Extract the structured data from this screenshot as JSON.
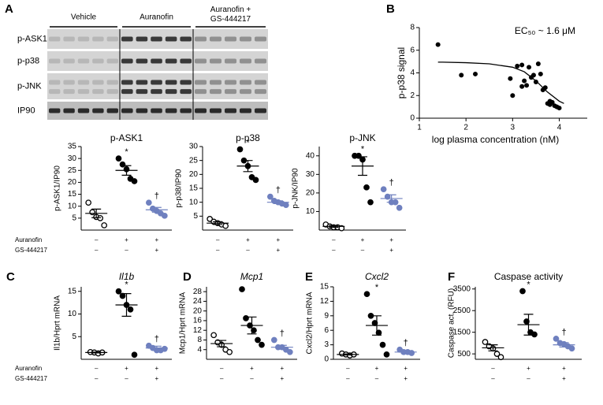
{
  "blot": {
    "panel": "A",
    "groups": [
      "Vehicle",
      "Auranofin",
      "Auranofin + GS-444217"
    ],
    "rows": [
      "p-ASK1",
      "p-p38",
      "p-JNK",
      "IP90"
    ]
  },
  "chart_data": [
    {
      "type": "dot",
      "title": "p-ASK1",
      "ylabel": "p-ASK1/IP90",
      "ylim": [
        0,
        35
      ],
      "yticks": [
        5,
        10,
        15,
        20,
        25,
        30,
        35
      ],
      "groups": [
        {
          "fill": "#ffffff",
          "stroke": "#000000",
          "values": [
            11.5,
            7.5,
            5.5,
            5,
            2
          ],
          "mean": 7,
          "sem": 1.8,
          "mark": null
        },
        {
          "fill": "#000000",
          "stroke": "#000000",
          "values": [
            30,
            27.5,
            25.5,
            21.5,
            20.5
          ],
          "mean": 25,
          "sem": 2,
          "mark": "*"
        },
        {
          "fill": "#6f80bf",
          "stroke": "#6f80bf",
          "values": [
            11.5,
            9,
            8,
            7,
            6
          ],
          "mean": 8.5,
          "sem": 1,
          "mark": "†"
        }
      ],
      "conditions": [
        {
          "name": "Auranofin",
          "signs": [
            "–",
            "+",
            "+"
          ]
        },
        {
          "name": "GS-444217",
          "signs": [
            "–",
            "–",
            "+"
          ]
        }
      ]
    },
    {
      "type": "dot",
      "title": "p-p38",
      "ylabel": "p-p38/IP90",
      "ylim": [
        0,
        30
      ],
      "yticks": [
        5,
        10,
        15,
        20,
        25,
        30
      ],
      "groups": [
        {
          "fill": "#ffffff",
          "stroke": "#000000",
          "values": [
            4,
            3,
            2.5,
            2,
            1.5
          ],
          "mean": 2.5,
          "sem": 0.5,
          "mark": null
        },
        {
          "fill": "#000000",
          "stroke": "#000000",
          "values": [
            29,
            25,
            23,
            19,
            18
          ],
          "mean": 23,
          "sem": 2,
          "mark": "*"
        },
        {
          "fill": "#6f80bf",
          "stroke": "#6f80bf",
          "values": [
            12,
            10.5,
            10,
            9.5,
            9
          ],
          "mean": 10,
          "sem": 0.5,
          "mark": "†"
        }
      ],
      "conditions": [
        {
          "signs": [
            "–",
            "+",
            "+"
          ]
        },
        {
          "signs": [
            "–",
            "–",
            "+"
          ]
        }
      ]
    },
    {
      "type": "dot",
      "title": "p-JNK",
      "ylabel": "p-JNK/IP90",
      "ylim": [
        0,
        45
      ],
      "yticks": [
        10,
        20,
        30,
        40
      ],
      "groups": [
        {
          "fill": "#ffffff",
          "stroke": "#000000",
          "values": [
            3,
            2,
            1.5,
            1.5,
            1
          ],
          "mean": 2,
          "sem": 0.5,
          "mark": null
        },
        {
          "fill": "#000000",
          "stroke": "#000000",
          "values": [
            40,
            40,
            38,
            23,
            15
          ],
          "mean": 34.5,
          "sem": 5,
          "mark": "*"
        },
        {
          "fill": "#6f80bf",
          "stroke": "#6f80bf",
          "values": [
            22,
            18,
            15,
            15,
            12
          ],
          "mean": 17,
          "sem": 2,
          "mark": "†"
        }
      ],
      "conditions": [
        {
          "signs": [
            "–",
            "+",
            "+"
          ]
        },
        {
          "signs": [
            "–",
            "–",
            "+"
          ]
        }
      ]
    },
    {
      "type": "scatter",
      "panel": "B",
      "xlabel": "log plasma concentration (nM)",
      "ylabel": "p-p38 signal",
      "annotation": "EC₅₀ ~ 1.6 μM",
      "xlim": [
        1,
        4.6
      ],
      "xticks": [
        1,
        2,
        3,
        4
      ],
      "ylim": [
        0,
        8
      ],
      "yticks": [
        0,
        2,
        4,
        6,
        8
      ],
      "color": "#000000",
      "x": [
        1.4,
        1.9,
        2.2,
        2.95,
        3.1,
        3.2,
        3.25,
        3.3,
        3.35,
        3.4,
        3.45,
        3.5,
        3.55,
        3.6,
        3.65,
        3.7,
        3.2,
        3.0,
        3.75,
        3.8,
        3.85,
        3.9,
        3.95,
        4.0,
        3.8
      ],
      "values": [
        6.5,
        3.8,
        3.9,
        3.5,
        4.6,
        4.7,
        3.3,
        2.9,
        4.5,
        3.6,
        3.8,
        3.2,
        4.8,
        3.9,
        2.5,
        2.7,
        2.8,
        2.0,
        1.3,
        1.2,
        1.4,
        1.1,
        1.0,
        0.9,
        1.5
      ],
      "fit": {
        "x": [
          1.4,
          1.5,
          2,
          2.5,
          3,
          3.25,
          3.5,
          3.75,
          4.0,
          4.1
        ],
        "values": [
          4.95,
          4.95,
          4.9,
          4.8,
          4.5,
          4.1,
          3.3,
          2.3,
          1.5,
          1.3
        ]
      }
    },
    {
      "type": "dot",
      "panel": "C",
      "title": "Il1b",
      "ylabel": "Il1b/Hprt mRNA",
      "ylim": [
        0,
        16
      ],
      "yticks": [
        5,
        10,
        15
      ],
      "groups": [
        {
          "fill": "#ffffff",
          "stroke": "#000000",
          "values": [
            1.6,
            1.5,
            1.3,
            1.5
          ],
          "mean": 1.5,
          "sem": 0.1,
          "mark": null
        },
        {
          "fill": "#000000",
          "stroke": "#000000",
          "values": [
            15,
            14,
            12,
            11,
            1
          ],
          "mean": 12,
          "sem": 2.5,
          "mark": "*"
        },
        {
          "fill": "#6f80bf",
          "stroke": "#6f80bf",
          "values": [
            3,
            2.5,
            2,
            2,
            2.3
          ],
          "mean": 2.5,
          "sem": 0.4,
          "mark": "†"
        }
      ],
      "conditions": [
        {
          "name": "Auranofin",
          "signs": [
            "–",
            "+",
            "+"
          ]
        },
        {
          "name": "GS-444217",
          "signs": [
            "–",
            "–",
            "+"
          ]
        }
      ]
    },
    {
      "type": "dot",
      "panel": "D",
      "title": "Mcp1",
      "ylabel": "Mcp1/Hprt mRNA",
      "ylim": [
        0,
        30
      ],
      "yticks": [
        4,
        8,
        12,
        16,
        20,
        24,
        28
      ],
      "groups": [
        {
          "fill": "#ffffff",
          "stroke": "#000000",
          "values": [
            10,
            7,
            6,
            4,
            3
          ],
          "mean": 6.5,
          "sem": 1.3,
          "mark": null
        },
        {
          "fill": "#000000",
          "stroke": "#000000",
          "values": [
            29,
            17,
            14,
            12,
            8,
            6
          ],
          "mean": 14,
          "sem": 3.5,
          "mark": null
        },
        {
          "fill": "#6f80bf",
          "stroke": "#6f80bf",
          "values": [
            8,
            5,
            5,
            4,
            3
          ],
          "mean": 5,
          "sem": 0.8,
          "mark": "†"
        }
      ],
      "conditions": [
        {
          "signs": [
            "–",
            "+",
            "+"
          ]
        },
        {
          "signs": [
            "–",
            "–",
            "+"
          ]
        }
      ]
    },
    {
      "type": "dot",
      "panel": "E",
      "title": "Cxcl2",
      "ylabel": "Cxcl2/Hprt mRNA",
      "ylim": [
        0,
        15
      ],
      "yticks": [
        0,
        3,
        6,
        9,
        12,
        15
      ],
      "groups": [
        {
          "fill": "#ffffff",
          "stroke": "#000000",
          "values": [
            1.2,
            1,
            0.8,
            1
          ],
          "mean": 1,
          "sem": 0.1,
          "mark": null
        },
        {
          "fill": "#000000",
          "stroke": "#000000",
          "values": [
            13.5,
            9,
            7.5,
            5.5,
            3,
            1
          ],
          "mean": 7,
          "sem": 2,
          "mark": "*"
        },
        {
          "fill": "#6f80bf",
          "stroke": "#6f80bf",
          "values": [
            2,
            1.5,
            1.5,
            1.3
          ],
          "mean": 1.5,
          "sem": 0.3,
          "mark": "†"
        }
      ],
      "conditions": [
        {
          "signs": [
            "–",
            "+",
            "+"
          ]
        },
        {
          "signs": [
            "–",
            "–",
            "+"
          ]
        }
      ]
    },
    {
      "type": "dot",
      "panel": "F",
      "title": "Caspase activity",
      "ylabel": "Caspase act. (RFU)",
      "ylim": [
        250,
        3600
      ],
      "yticks": [
        500,
        1500,
        2500,
        3500
      ],
      "groups": [
        {
          "fill": "#ffffff",
          "stroke": "#000000",
          "values": [
            1050,
            850,
            750,
            500,
            350
          ],
          "mean": 780,
          "sem": 140,
          "mark": null
        },
        {
          "fill": "#000000",
          "stroke": "#000000",
          "values": [
            3400,
            2000,
            1500,
            1400
          ],
          "mean": 1850,
          "sem": 480,
          "mark": "*"
        },
        {
          "fill": "#6f80bf",
          "stroke": "#6f80bf",
          "values": [
            1200,
            1000,
            950,
            850,
            750
          ],
          "mean": 920,
          "sem": 100,
          "mark": "†"
        }
      ],
      "conditions": [
        {
          "signs": [
            "–",
            "+",
            "+"
          ]
        },
        {
          "signs": [
            "–",
            "–",
            "+"
          ]
        }
      ]
    }
  ]
}
